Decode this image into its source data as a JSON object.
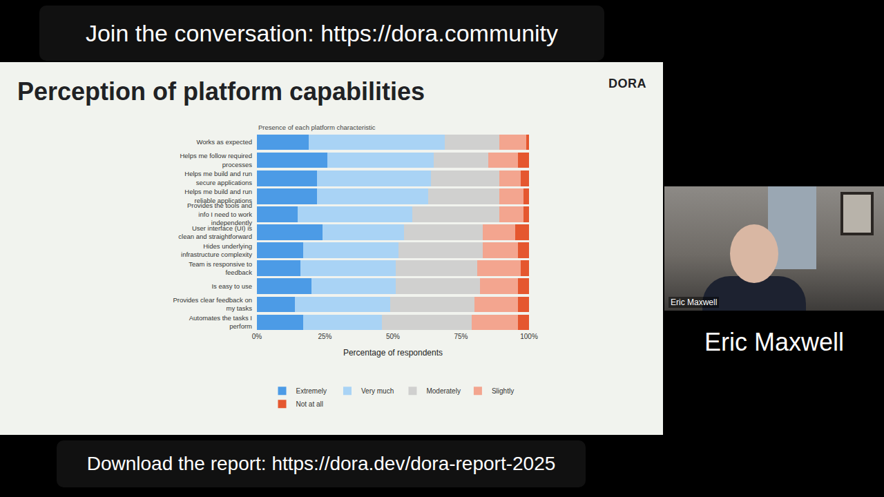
{
  "page": {
    "top_banner": "Join the conversation: https://dora.community",
    "bottom_banner": "Download the report: https://dora.dev/dora-report-2025",
    "logo": "DORA",
    "speaker_tag": "Eric Maxwell",
    "speaker_name": "Eric Maxwell"
  },
  "chart_data": {
    "type": "bar",
    "orientation": "horizontal",
    "stacked": true,
    "title": "Perception of platform capabilities",
    "subtitle": "Presence of each platform characteristic",
    "x_label": "Percentage of respondents",
    "categories": [
      "Works as expected",
      "Helps me follow required processes",
      "Helps me build and run secure applications",
      "Helps me build and run reliable applications",
      "Provides the tools and info I need to work independently",
      "User interface (UI) is clean and straightforward",
      "Hides underlying infrastructure complexity",
      "Team is responsive to feedback",
      "Is easy to use",
      "Provides clear feedback on my tasks",
      "Automates the tasks I perform"
    ],
    "series": [
      {
        "name": "Extremely",
        "color": "#4c9be6",
        "values": [
          19,
          26,
          22,
          22,
          15,
          24,
          17,
          16,
          20,
          14,
          17
        ]
      },
      {
        "name": "Very much",
        "color": "#a9d3f5",
        "values": [
          50,
          39,
          42,
          41,
          42,
          30,
          35,
          35,
          31,
          35,
          29
        ]
      },
      {
        "name": "Moderately",
        "color": "#d0d0cf",
        "values": [
          20,
          20,
          25,
          26,
          32,
          29,
          31,
          30,
          31,
          31,
          33
        ]
      },
      {
        "name": "Slightly",
        "color": "#f3a58f",
        "values": [
          10,
          11,
          8,
          9,
          9,
          12,
          13,
          16,
          14,
          16,
          17
        ]
      },
      {
        "name": "Not at all",
        "color": "#e5572f",
        "values": [
          1,
          4,
          3,
          2,
          2,
          5,
          4,
          3,
          4,
          4,
          4
        ]
      }
    ],
    "xlim": [
      0,
      100
    ],
    "xticks": [
      {
        "value": 0,
        "label": "0%"
      },
      {
        "value": 25,
        "label": "25%"
      },
      {
        "value": 50,
        "label": "50%"
      },
      {
        "value": 75,
        "label": "75%"
      },
      {
        "value": 100,
        "label": "100%"
      }
    ],
    "grid": false,
    "legend": "bottom"
  }
}
